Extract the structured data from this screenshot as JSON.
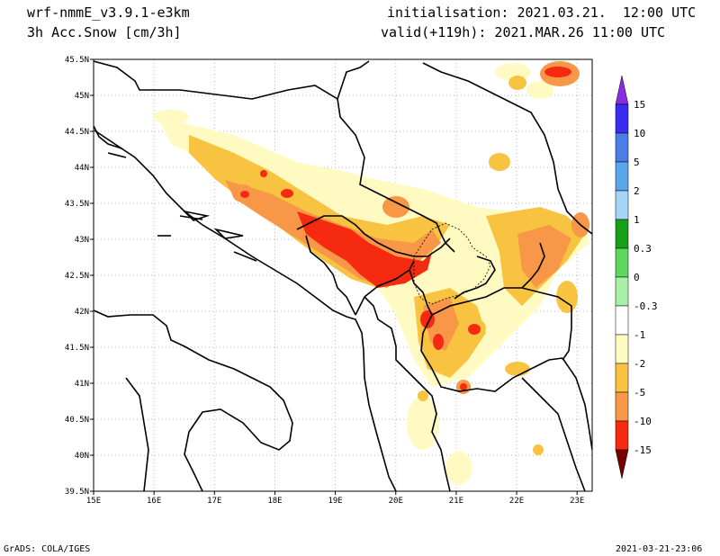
{
  "header": {
    "model": "wrf-nmmE_v3.9.1-e3km",
    "field": "3h Acc.Snow [cm/3h]",
    "init": "initialisation: 2021.03.21.  12:00 UTC",
    "valid": "valid(+119h): 2021.MAR.26 11:00 UTC"
  },
  "map": {
    "lon_ticks": [
      "15E",
      "16E",
      "17E",
      "18E",
      "19E",
      "20E",
      "21E",
      "22E",
      "23E"
    ],
    "lat_ticks": [
      "45.5N",
      "45N",
      "44.5N",
      "44N",
      "43.5N",
      "43N",
      "42.5N",
      "42N",
      "41.5N",
      "41N",
      "40.5N",
      "40N",
      "39.5N"
    ],
    "lon_range": [
      15,
      23.25
    ],
    "lat_range": [
      39.5,
      45.5
    ],
    "grid": "dotted"
  },
  "colorbar": {
    "labels": [
      "15",
      "10",
      "5",
      "2",
      "1",
      "0.3",
      "0",
      "-0.3",
      "-1",
      "-2",
      "-5",
      "-10",
      "-15"
    ],
    "colors": [
      "#3b2cf0",
      "#4a7de6",
      "#5aa6ea",
      "#a6d4f6",
      "#189f18",
      "#5ed65e",
      "#a8f0a8",
      "#ffffff",
      "#fffac2",
      "#f7c341",
      "#f79747",
      "#f52a10",
      "#b40000"
    ],
    "top_arrow_color": "#8a2be2",
    "bottom_arrow_color": "#7a0000"
  },
  "footer": {
    "left": "GrADS: COLA/IGES",
    "right": "2021-03-21-23:06"
  }
}
